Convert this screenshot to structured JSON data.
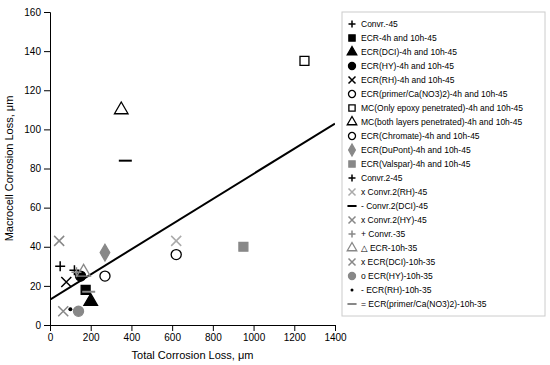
{
  "chart_data": {
    "type": "scatter",
    "xlabel": "Total Corrosion Loss, μm",
    "ylabel": "Macrocell Corrosion Loss, μm",
    "xlim": [
      0,
      1400
    ],
    "ylim": [
      0,
      160
    ],
    "xticks": [
      0,
      200,
      400,
      600,
      800,
      1000,
      1200,
      1400
    ],
    "yticks": [
      0,
      20,
      40,
      60,
      80,
      100,
      120,
      140,
      160
    ],
    "grid": false,
    "legend": "right",
    "series": [
      {
        "type": "line",
        "x": [
          0,
          1400
        ],
        "values": [
          13,
          103
        ],
        "color": "#000000",
        "line_style": "solid"
      },
      {
        "name": "Convr.-45",
        "marker": "plus",
        "color": "#000000",
        "x": [
          50
        ],
        "values": [
          30
        ]
      },
      {
        "name": "ECR-4h and 10h-45",
        "marker": "square",
        "color": "#000000",
        "x": [
          175
        ],
        "values": [
          18
        ]
      },
      {
        "name": "ECR(DCI)-4h and 10h-45",
        "marker": "triangle",
        "color": "#000000",
        "x": [
          200
        ],
        "values": [
          12
        ]
      },
      {
        "name": "ECR(HY)-4h and 10h-45",
        "marker": "circle",
        "color": "#000000",
        "x": [
          150
        ],
        "values": [
          25
        ]
      },
      {
        "name": "ECR(RH)-4h and 10h-45",
        "marker": "x",
        "color": "#000000",
        "x": [
          80
        ],
        "values": [
          22
        ]
      },
      {
        "name": "ECR(primer/Ca(NO3)2)-4h and 10h-45",
        "marker": "circle-open",
        "color": "#000000",
        "x": [
          270
        ],
        "values": [
          25
        ]
      },
      {
        "name": "MC(Only epoxy penetrated)-4h and 10h-45",
        "marker": "square-open",
        "color": "#000000",
        "x": [
          1250
        ],
        "values": [
          135
        ]
      },
      {
        "name": "MC(both layers penetrated)-4h and 10h-45",
        "marker": "triangle-open",
        "color": "#000000",
        "x": [
          350
        ],
        "values": [
          110
        ]
      },
      {
        "name": "ECR(Chromate)-4h and 10h-45",
        "marker": "circle-open",
        "color": "#000000",
        "x": [
          620
        ],
        "values": [
          36
        ]
      },
      {
        "name": "ECR(DuPont)-4h and 10h-45",
        "marker": "diamond",
        "color": "#888888",
        "x": [
          270
        ],
        "values": [
          37
        ]
      },
      {
        "name": "ECR(Valspar)-4h and 10h-45",
        "marker": "square",
        "color": "#888888",
        "x": [
          950
        ],
        "values": [
          40
        ]
      },
      {
        "name": "Convr.2-45",
        "marker": "plus",
        "color": "#000000",
        "x": [
          120
        ],
        "values": [
          28
        ]
      },
      {
        "name": "x Convr.2(RH)-45",
        "marker": "x",
        "color": "#aaaaaa",
        "x": [
          620
        ],
        "values": [
          43
        ]
      },
      {
        "name": "- Convr.2(DCI)-45",
        "marker": "hline",
        "color": "#000000",
        "x": [
          370
        ],
        "values": [
          84
        ]
      },
      {
        "name": "x Convr.2(HY)-45",
        "marker": "x",
        "color": "#888888",
        "x": [
          45
        ],
        "values": [
          43
        ]
      },
      {
        "name": "+ Convr.-35",
        "marker": "plus",
        "color": "#888888",
        "x": [
          130
        ],
        "values": [
          27
        ]
      },
      {
        "name": "△ ECR-10h-35",
        "marker": "triangle-open",
        "color": "#888888",
        "x": [
          165
        ],
        "values": [
          27
        ]
      },
      {
        "name": "x ECR(DCI)-10h-35",
        "marker": "x",
        "color": "#888888",
        "x": [
          65
        ],
        "values": [
          7
        ]
      },
      {
        "name": "o ECR(HY)-10h-35",
        "marker": "circle",
        "color": "#888888",
        "x": [
          140
        ],
        "values": [
          7
        ]
      },
      {
        "name": "- ECR(RH)-10h-35",
        "marker": "point",
        "color": "#000000",
        "x": [
          100
        ],
        "values": [
          8
        ]
      },
      {
        "name": "= ECR(primer/Ca(NO3)2)-10h-35",
        "marker": "hline",
        "color": "#888888",
        "x": [
          190
        ],
        "values": [
          17
        ]
      }
    ]
  }
}
